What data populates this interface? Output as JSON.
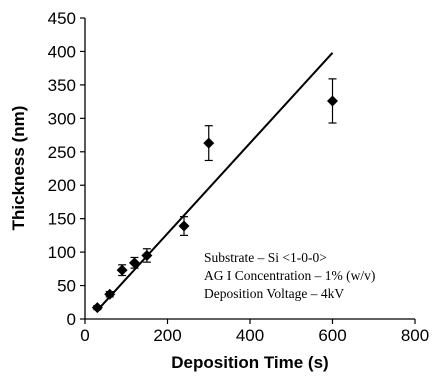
{
  "chart_data": {
    "type": "scatter",
    "xlabel": "Deposition Time (s)",
    "ylabel": "Thickness (nm)",
    "xlim": [
      0,
      800
    ],
    "ylim": [
      0,
      450
    ],
    "xticks": [
      0,
      200,
      400,
      600,
      800
    ],
    "yticks": [
      0,
      50,
      100,
      150,
      200,
      250,
      300,
      350,
      400,
      450
    ],
    "grid": false,
    "points": [
      {
        "x": 30,
        "y": 17,
        "err": 3
      },
      {
        "x": 60,
        "y": 37,
        "err": 4
      },
      {
        "x": 90,
        "y": 73,
        "err": 8
      },
      {
        "x": 120,
        "y": 84,
        "err": 8
      },
      {
        "x": 150,
        "y": 95,
        "err": 10
      },
      {
        "x": 240,
        "y": 139,
        "err": 14
      },
      {
        "x": 300,
        "y": 263,
        "err": 26
      },
      {
        "x": 600,
        "y": 326,
        "err": 33
      }
    ],
    "fit_line": {
      "x": [
        30,
        600
      ],
      "y": [
        13,
        398
      ]
    },
    "annotations": [
      "Substrate – Si <1-0-0>",
      "AG I Concentration – 1% (w/v)",
      "Deposition Voltage – 4kV"
    ],
    "marker_color": "#000000",
    "line_color": "#000000"
  }
}
